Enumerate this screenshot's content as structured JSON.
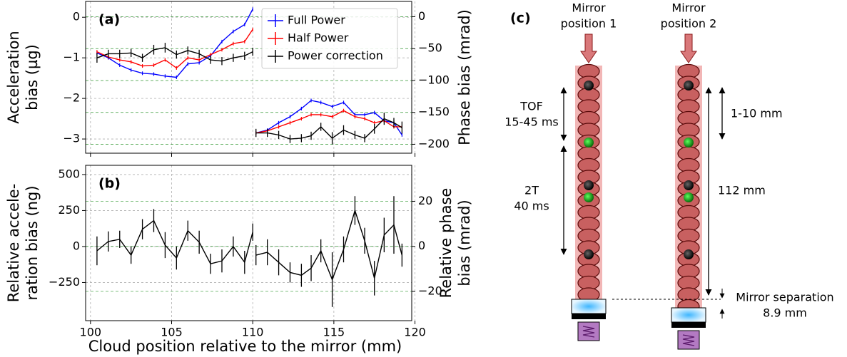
{
  "chart_data": [
    {
      "type": "line",
      "panel_label": "(a)",
      "ylabel": [
        "Acceleration",
        "bias (µg)"
      ],
      "y2label": [
        "Phase bias (mrad)"
      ],
      "x": [
        100.4,
        101.1,
        101.8,
        102.5,
        103.2,
        103.9,
        104.6,
        105.3,
        106.0,
        106.7,
        107.4,
        108.1,
        108.8,
        109.5,
        110.0,
        110.1,
        110.2,
        110.9,
        111.6,
        112.3,
        113.0,
        113.6,
        114.2,
        114.9,
        115.6,
        116.3,
        116.9,
        117.5,
        118.1,
        118.7,
        119.2
      ],
      "series": [
        {
          "name": "Full Power",
          "color": "#0000ff",
          "values": [
            -0.88,
            -1.0,
            -1.18,
            -1.3,
            -1.38,
            -1.4,
            -1.45,
            -1.48,
            -1.15,
            -1.12,
            -0.95,
            -0.6,
            -0.35,
            -0.18,
            0.2,
            null,
            -2.85,
            -2.78,
            -2.6,
            -2.45,
            -2.25,
            -2.05,
            -2.1,
            -2.2,
            -2.1,
            -2.4,
            -2.4,
            -2.35,
            -2.55,
            -2.6,
            -2.9
          ]
        },
        {
          "name": "Half Power",
          "color": "#ff0000",
          "values": [
            -0.85,
            -0.98,
            -1.05,
            -1.1,
            -1.2,
            -1.18,
            -1.05,
            -1.25,
            -1.0,
            -1.05,
            -0.92,
            -0.8,
            -0.65,
            -0.6,
            -0.3,
            null,
            -2.85,
            -2.8,
            -2.7,
            -2.6,
            -2.5,
            -2.4,
            -2.4,
            -2.45,
            -2.3,
            -2.45,
            -2.5,
            -2.6,
            -2.55,
            -2.7,
            -2.7
          ]
        },
        {
          "name": "Power correction",
          "color": "#000000",
          "values": [
            -1.0,
            -0.9,
            -0.9,
            -0.88,
            -1.0,
            -0.8,
            -0.75,
            -0.92,
            -0.82,
            -0.9,
            -1.05,
            -1.08,
            -1.0,
            -0.95,
            -0.85,
            null,
            -2.85,
            -2.85,
            -2.9,
            -3.0,
            -2.98,
            -2.92,
            -2.7,
            -2.98,
            -2.78,
            -2.9,
            -2.98,
            -2.75,
            -2.5,
            -2.6,
            -2.72
          ],
          "errors": [
            0.12,
            0.1,
            0.1,
            0.1,
            0.1,
            0.12,
            0.12,
            0.1,
            0.1,
            0.1,
            0.1,
            0.1,
            0.1,
            0.1,
            0.1,
            null,
            0.1,
            0.1,
            0.1,
            0.1,
            0.1,
            0.1,
            0.1,
            0.15,
            0.12,
            0.1,
            0.1,
            0.12,
            0.15,
            0.12,
            0.15
          ]
        }
      ],
      "xlim": [
        99.7,
        119.8
      ],
      "xticks": [
        100,
        105,
        110,
        115,
        120
      ],
      "show_xtick_labels": false,
      "ylim": [
        -3.35,
        0.39
      ],
      "yticks": [
        {
          "value": -3,
          "label": "−3"
        },
        {
          "value": -2,
          "label": "−2"
        },
        {
          "value": -1,
          "label": "−1"
        },
        0
      ],
      "y2lim": [
        -214,
        24
      ],
      "y2ticks": [
        {
          "value": -200,
          "label": "−200"
        },
        {
          "value": -150,
          "label": "−150"
        },
        {
          "value": -100,
          "label": "−100"
        },
        {
          "value": -50,
          "label": "−50"
        },
        0
      ],
      "grid": true,
      "y2grid": true,
      "y2color": "#008000",
      "legend": "upper right"
    },
    {
      "type": "line",
      "panel_label": "(b)",
      "ylabel": [
        "Relative accele-",
        "ration bias (ng)"
      ],
      "y2label": [
        "Relative phase",
        "bias (mrad)"
      ],
      "xlabel": "Cloud position relative to the mirror (mm)",
      "x": [
        100.4,
        101.1,
        101.8,
        102.5,
        103.2,
        103.9,
        104.6,
        105.3,
        106.0,
        106.7,
        107.4,
        108.1,
        108.8,
        109.5,
        110.0,
        110.1,
        110.2,
        110.9,
        111.6,
        112.3,
        113.0,
        113.6,
        114.2,
        114.9,
        115.6,
        116.3,
        116.9,
        117.5,
        118.1,
        118.7,
        119.2
      ],
      "color": "#000000",
      "values": [
        -30,
        35,
        50,
        -60,
        120,
        180,
        10,
        -80,
        110,
        30,
        -120,
        -100,
        0,
        -110,
        100,
        null,
        -60,
        -40,
        -110,
        -180,
        -200,
        -150,
        -30,
        -230,
        -20,
        250,
        40,
        -220,
        80,
        150,
        -60
      ],
      "errors": [
        100,
        70,
        60,
        60,
        70,
        80,
        90,
        80,
        70,
        80,
        70,
        80,
        70,
        80,
        60,
        null,
        70,
        90,
        90,
        70,
        80,
        90,
        80,
        190,
        90,
        100,
        90,
        120,
        120,
        200,
        80
      ],
      "xlim": [
        99.7,
        119.8
      ],
      "xticks": [
        100,
        105,
        110,
        115,
        120
      ],
      "show_xtick_labels": true,
      "ylim": [
        -515,
        564
      ],
      "yticks": [
        {
          "value": -250,
          "label": "−250"
        },
        0,
        250,
        500
      ],
      "y2lim": [
        -33,
        36
      ],
      "y2ticks": [
        {
          "value": -20,
          "label": "−20"
        },
        0,
        20
      ],
      "grid": true,
      "y2grid": true,
      "y2color": "#008000"
    }
  ],
  "diagram": {
    "panel_label": "(c)",
    "columns": [
      {
        "title": [
          "Mirror",
          "position 1"
        ]
      },
      {
        "title": [
          "Mirror",
          "position 2"
        ]
      }
    ],
    "tof": [
      "TOF",
      "15-45 ms"
    ],
    "interval": [
      "2T",
      "40 ms"
    ],
    "drop": [
      "1-10 mm"
    ],
    "height": [
      "112 mm"
    ],
    "separation": [
      "Mirror separation",
      "8.9 mm"
    ]
  }
}
